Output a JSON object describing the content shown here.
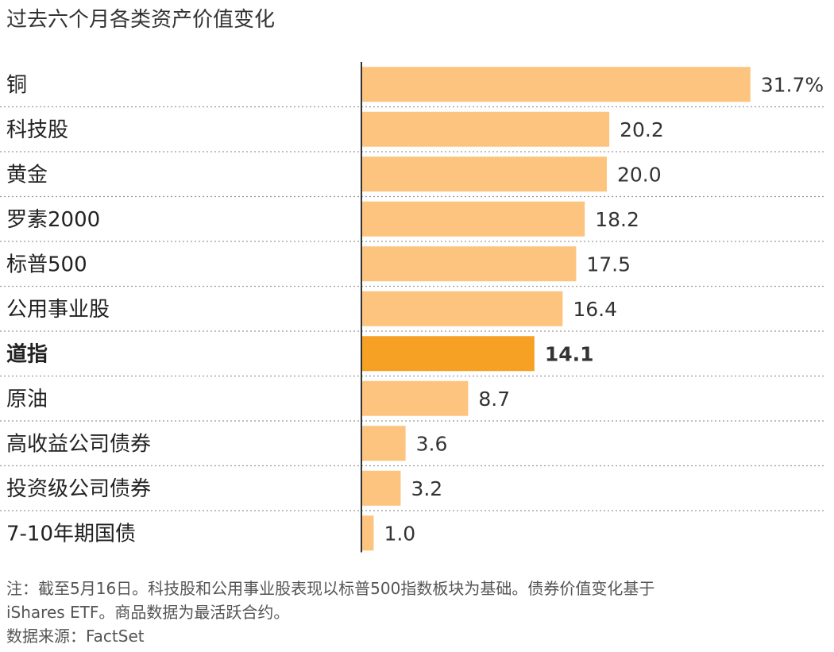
{
  "title": "过去六个月各类资产价值变化",
  "chart_data": {
    "type": "bar",
    "orientation": "horizontal",
    "title": "过去六个月各类资产价值变化",
    "categories": [
      "铜",
      "科技股",
      "黄金",
      "罗素2000",
      "标普500",
      "公用事业股",
      "道指",
      "原油",
      "高收益公司债券",
      "投资级公司债券",
      "7-10年期国债"
    ],
    "values": [
      31.7,
      20.2,
      20.0,
      18.2,
      17.5,
      16.4,
      14.1,
      8.7,
      3.6,
      3.2,
      1.0
    ],
    "value_labels": [
      "31.7%",
      "20.2",
      "20.0",
      "18.2",
      "17.5",
      "16.4",
      "14.1",
      "8.7",
      "3.6",
      "3.2",
      "1.0"
    ],
    "highlight_index": 6,
    "xlim": [
      0,
      32
    ],
    "grid": "dotted row separators",
    "colors": {
      "bar": "#fdc47f",
      "highlight": "#f6a024",
      "axis": "#333333",
      "separator": "#999999"
    }
  },
  "notes": {
    "line1": "注：截至5月16日。科技股和公用事业股表现以标普500指数板块为基础。债券价值变化基于",
    "line2": "iShares ETF。商品数据为最活跃合约。",
    "source": "数据来源：FactSet"
  }
}
